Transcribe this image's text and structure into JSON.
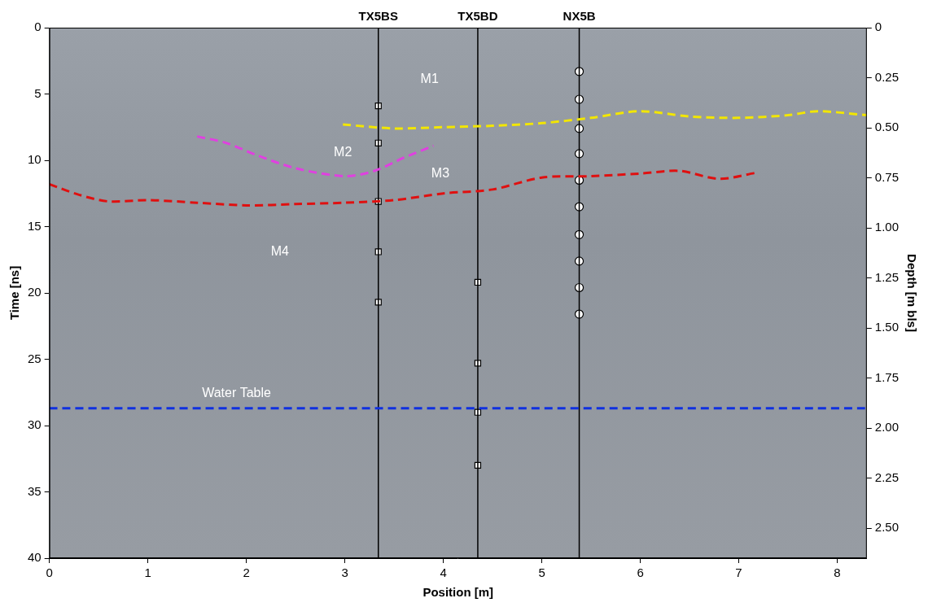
{
  "chart_data": {
    "type": "line",
    "xlabel": "Position [m]",
    "ylabel": "Time [ns]",
    "y2label": "Depth [m bls]",
    "xlim": [
      0,
      8.3
    ],
    "xticks": [
      0,
      1,
      2,
      3,
      4,
      5,
      6,
      7,
      8
    ],
    "ylim": [
      40,
      0
    ],
    "yticks": [
      0,
      5,
      10,
      15,
      20,
      25,
      30,
      35,
      40
    ],
    "y2lim": [
      2.65,
      0
    ],
    "y2ticks": [
      0,
      0.25,
      {
        "value": 0.5,
        "label": "0.50"
      },
      0.75,
      {
        "value": 1,
        "label": "1.00"
      },
      1.25,
      {
        "value": 1.5,
        "label": "1.50"
      },
      1.75,
      {
        "value": 2,
        "label": "2.00"
      },
      2.25,
      {
        "value": 2.5,
        "label": "2.50"
      }
    ],
    "grid": false,
    "series": [
      {
        "color": "#f2e600",
        "line_style": "dashed",
        "x": [
          2.98,
          3.5,
          4.0,
          4.5,
          5.0,
          5.5,
          6.0,
          6.5,
          7.0,
          7.5,
          7.8,
          8.3
        ],
        "values": [
          7.3,
          7.6,
          7.5,
          7.4,
          7.2,
          6.8,
          6.3,
          6.7,
          6.8,
          6.6,
          6.3,
          6.6
        ]
      },
      {
        "color": "#e040e0",
        "line_style": "dashed",
        "x": [
          1.5,
          1.8,
          2.1,
          2.5,
          3.0,
          3.3,
          3.6,
          3.9
        ],
        "values": [
          8.2,
          8.7,
          9.6,
          10.6,
          11.2,
          10.8,
          9.8,
          8.9
        ]
      },
      {
        "color": "#e01010",
        "line_style": "dashed",
        "x": [
          0,
          0.3,
          0.6,
          1.0,
          1.5,
          2.0,
          2.5,
          3.0,
          3.5,
          4.0,
          4.5,
          5.0,
          5.5,
          6.0,
          6.4,
          6.8,
          7.2
        ],
        "values": [
          11.8,
          12.6,
          13.1,
          13.0,
          13.2,
          13.4,
          13.3,
          13.2,
          13.0,
          12.5,
          12.2,
          11.3,
          11.2,
          11.0,
          10.8,
          11.4,
          10.9
        ]
      },
      {
        "color": "#1030e0",
        "line_style": "dashed",
        "x": [
          0,
          8.3
        ],
        "values": [
          28.7,
          28.7
        ]
      }
    ],
    "boreholes": [
      {
        "name": "TX5BS",
        "x": 3.34,
        "color": "#000000",
        "marker": "square",
        "values": [
          5.9,
          8.7,
          13.1,
          16.9,
          20.7
        ]
      },
      {
        "name": "TX5BD",
        "x": 4.35,
        "color": "#000000",
        "marker": "square",
        "values": [
          19.2,
          25.3,
          29.0,
          33.0
        ]
      },
      {
        "name": "NX5B",
        "x": 5.38,
        "color": "#000000",
        "marker": "circle",
        "values": [
          3.3,
          5.4,
          7.6,
          9.5,
          11.5,
          13.5,
          15.6,
          17.6,
          19.6,
          21.6
        ]
      }
    ],
    "annotations": [
      {
        "text": "M1",
        "x": 3.86,
        "y": 3.9
      },
      {
        "text": "M2",
        "x": 2.98,
        "y": 9.4
      },
      {
        "text": "M3",
        "x": 3.97,
        "y": 11.0
      },
      {
        "text": "M4",
        "x": 2.34,
        "y": 16.9
      },
      {
        "text": "Water Table",
        "x": 1.9,
        "y": 27.6
      }
    ]
  }
}
